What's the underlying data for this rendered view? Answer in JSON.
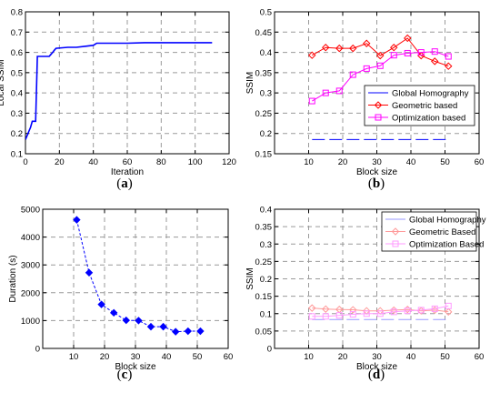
{
  "colors": {
    "blue": "#0000ff",
    "red": "#ff0000",
    "magenta": "#ff00ff",
    "light_blue": "#9999ff",
    "light_red": "#ff9999",
    "light_magenta": "#ff99ff"
  },
  "chart_data": [
    {
      "panel": "(a)",
      "type": "line",
      "caption_letter": "a",
      "xlabel": "Iteration",
      "ylabel": "Local SSIM",
      "xlim": [
        0,
        120
      ],
      "ylim": [
        0.1,
        0.8
      ],
      "xticks": [
        0,
        20,
        40,
        60,
        80,
        100,
        120
      ],
      "yticks": [
        0.1,
        0.2,
        0.3,
        0.4,
        0.5,
        0.6,
        0.7,
        0.8
      ],
      "grid": true,
      "legend": null,
      "series": [
        {
          "color": "#0000ff",
          "marker": "none",
          "dash": "solid",
          "x": [
            0,
            1,
            2,
            3,
            4,
            5,
            6,
            7,
            8,
            9,
            10,
            14,
            15,
            16,
            17,
            18,
            25,
            30,
            35,
            40,
            41,
            42,
            50,
            60,
            70,
            80,
            90,
            100,
            110
          ],
          "y": [
            0.17,
            0.19,
            0.21,
            0.23,
            0.26,
            0.26,
            0.26,
            0.58,
            0.58,
            0.58,
            0.58,
            0.58,
            0.59,
            0.6,
            0.61,
            0.62,
            0.625,
            0.625,
            0.63,
            0.635,
            0.64,
            0.645,
            0.645,
            0.645,
            0.648,
            0.648,
            0.648,
            0.648,
            0.648
          ]
        }
      ]
    },
    {
      "panel": "(b)",
      "type": "line",
      "caption_letter": "b",
      "xlabel": "Block size",
      "ylabel": "SSIM",
      "xlim": [
        0,
        60
      ],
      "ylim": [
        0.15,
        0.5
      ],
      "xticks": [
        10,
        20,
        30,
        40,
        50,
        60
      ],
      "yticks": [
        0.15,
        0.2,
        0.25,
        0.3,
        0.35,
        0.4,
        0.45,
        0.5
      ],
      "grid": true,
      "legend": {
        "position": "center-right",
        "entries": [
          "Global Homography",
          "Geometric based",
          "Optimization based"
        ]
      },
      "series": [
        {
          "name": "Global Homography",
          "color": "#0000ff",
          "marker": "none",
          "dash": "dashed",
          "x": [
            11,
            51
          ],
          "y": [
            0.185,
            0.185
          ]
        },
        {
          "name": "Geometric based",
          "color": "#ff0000",
          "marker": "diamond",
          "dash": "solid",
          "x": [
            11,
            15,
            19,
            23,
            27,
            31,
            35,
            39,
            43,
            47,
            51
          ],
          "y": [
            0.393,
            0.412,
            0.41,
            0.41,
            0.422,
            0.392,
            0.412,
            0.435,
            0.392,
            0.378,
            0.366
          ]
        },
        {
          "name": "Optimization based",
          "color": "#ff00ff",
          "marker": "square",
          "dash": "solid",
          "x": [
            11,
            15,
            19,
            23,
            27,
            31,
            35,
            39,
            43,
            47,
            51
          ],
          "y": [
            0.28,
            0.3,
            0.305,
            0.345,
            0.36,
            0.367,
            0.393,
            0.398,
            0.4,
            0.402,
            0.39
          ]
        }
      ]
    },
    {
      "panel": "(c)",
      "type": "line",
      "caption_letter": "c",
      "xlabel": "Block size",
      "ylabel": "Duration (s)",
      "xlim": [
        0,
        60
      ],
      "ylim": [
        0,
        5000
      ],
      "xticks": [
        10,
        20,
        30,
        40,
        50,
        60
      ],
      "yticks": [
        0,
        1000,
        2000,
        3000,
        4000,
        5000
      ],
      "grid": true,
      "legend": null,
      "series": [
        {
          "color": "#0000ff",
          "marker": "diamond-filled",
          "dash": "dashed",
          "x": [
            11,
            15,
            19,
            23,
            27,
            31,
            35,
            39,
            43,
            47,
            51
          ],
          "y": [
            4620,
            2720,
            1580,
            1280,
            1010,
            1000,
            780,
            780,
            600,
            620,
            620
          ]
        }
      ]
    },
    {
      "panel": "(d)",
      "type": "line",
      "caption_letter": "d",
      "xlabel": "Block size",
      "ylabel": "SSIM",
      "xlim": [
        0,
        60
      ],
      "ylim": [
        0,
        0.4
      ],
      "xticks": [
        10,
        20,
        30,
        40,
        50,
        60
      ],
      "yticks": [
        0,
        0.05,
        0.1,
        0.15,
        0.2,
        0.25,
        0.3,
        0.35,
        0.4
      ],
      "grid": true,
      "legend": {
        "position": "top-right",
        "entries": [
          "Global Homography",
          "Geometric Based",
          "Optimization Based"
        ]
      },
      "series": [
        {
          "name": "Global Homography",
          "color": "#9999ff",
          "marker": "none",
          "dash": "dashed",
          "x": [
            11,
            51
          ],
          "y": [
            0.083,
            0.083
          ]
        },
        {
          "name": "Geometric Based",
          "color": "#ff9999",
          "marker": "diamond",
          "dash": "solid",
          "x": [
            11,
            15,
            19,
            23,
            27,
            31,
            35,
            39,
            43,
            47,
            51
          ],
          "y": [
            0.116,
            0.113,
            0.112,
            0.111,
            0.108,
            0.108,
            0.11,
            0.112,
            0.108,
            0.11,
            0.105
          ]
        },
        {
          "name": "Optimization Based",
          "color": "#ff99ff",
          "marker": "square",
          "dash": "solid",
          "x": [
            11,
            15,
            19,
            23,
            27,
            31,
            35,
            39,
            43,
            47,
            51
          ],
          "y": [
            0.092,
            0.092,
            0.095,
            0.098,
            0.1,
            0.1,
            0.105,
            0.108,
            0.11,
            0.114,
            0.122
          ]
        }
      ]
    }
  ]
}
